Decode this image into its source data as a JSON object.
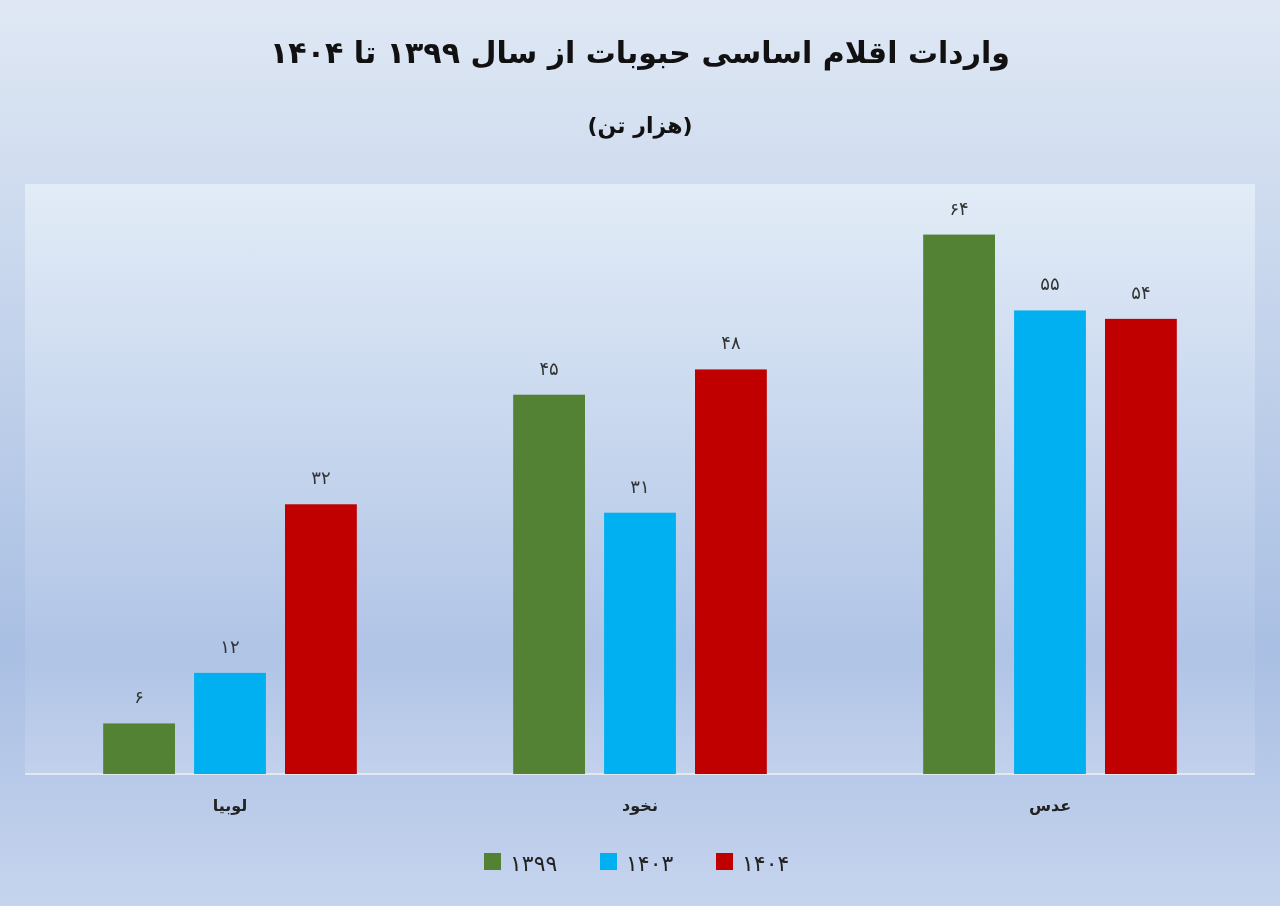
{
  "chart_data": {
    "type": "bar",
    "title": "واردات اقلام اساسی حبوبات از سال ۱۳۹۹ تا ۱۴۰۴",
    "subtitle": "(هزار تن)",
    "categories": [
      "لوبیا",
      "نخود",
      "عدس"
    ],
    "series": [
      {
        "name": "۱۳۹۹",
        "color": "#548235",
        "values": [
          6,
          45,
          64
        ],
        "value_labels": [
          "۶",
          "۴۵",
          "۶۴"
        ]
      },
      {
        "name": "۱۴۰۳",
        "color": "#00b0f0",
        "values": [
          12,
          31,
          55
        ],
        "value_labels": [
          "۱۲",
          "۳۱",
          "۵۵"
        ]
      },
      {
        "name": "۱۴۰۴",
        "color": "#c00000",
        "values": [
          32,
          48,
          54
        ],
        "value_labels": [
          "۳۲",
          "۴۸",
          "۵۴"
        ]
      }
    ],
    "ylim": [
      0,
      70
    ],
    "tick_labels": "x",
    "legend": "bottom"
  }
}
